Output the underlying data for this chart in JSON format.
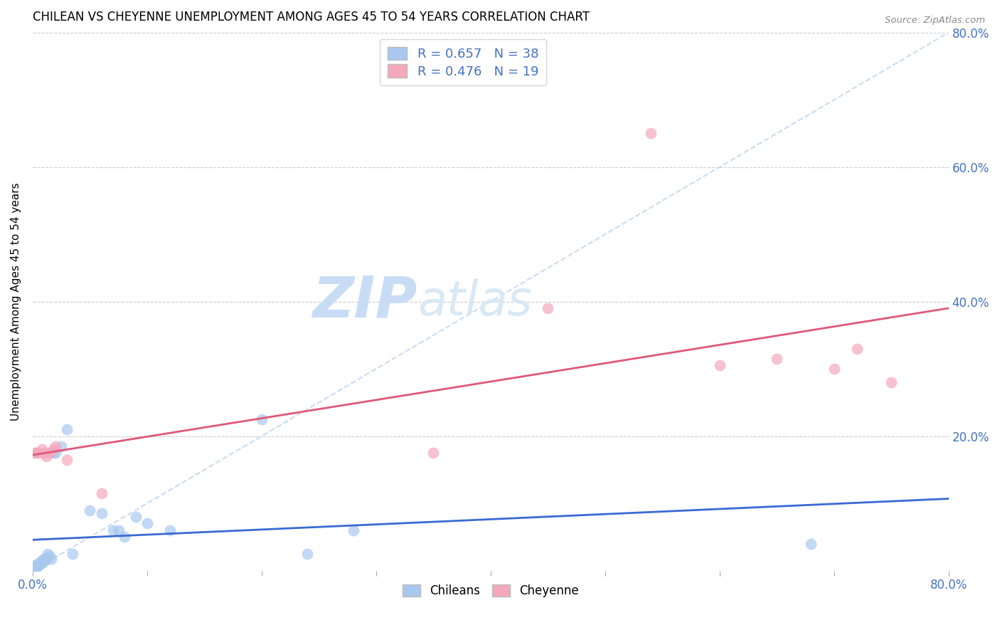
{
  "title": "CHILEAN VS CHEYENNE UNEMPLOYMENT AMONG AGES 45 TO 54 YEARS CORRELATION CHART",
  "source": "Source: ZipAtlas.com",
  "ylabel": "Unemployment Among Ages 45 to 54 years",
  "xlim": [
    0.0,
    0.8
  ],
  "ylim": [
    0.0,
    0.8
  ],
  "chileans_x": [
    0.001,
    0.001,
    0.002,
    0.002,
    0.002,
    0.003,
    0.003,
    0.004,
    0.004,
    0.005,
    0.005,
    0.006,
    0.007,
    0.008,
    0.009,
    0.01,
    0.011,
    0.012,
    0.013,
    0.015,
    0.016,
    0.018,
    0.02,
    0.025,
    0.03,
    0.035,
    0.05,
    0.06,
    0.07,
    0.075,
    0.08,
    0.09,
    0.1,
    0.12,
    0.2,
    0.24,
    0.28,
    0.68
  ],
  "chileans_y": [
    0.005,
    0.007,
    0.004,
    0.006,
    0.008,
    0.005,
    0.007,
    0.006,
    0.009,
    0.008,
    0.01,
    0.012,
    0.01,
    0.015,
    0.012,
    0.018,
    0.015,
    0.02,
    0.025,
    0.022,
    0.018,
    0.175,
    0.175,
    0.185,
    0.21,
    0.025,
    0.09,
    0.085,
    0.06,
    0.06,
    0.05,
    0.08,
    0.07,
    0.06,
    0.225,
    0.025,
    0.06,
    0.04
  ],
  "cheyenne_x": [
    0.002,
    0.003,
    0.005,
    0.008,
    0.01,
    0.012,
    0.015,
    0.018,
    0.02,
    0.03,
    0.06,
    0.35,
    0.45,
    0.54,
    0.6,
    0.65,
    0.7,
    0.72,
    0.75
  ],
  "cheyenne_y": [
    0.175,
    0.175,
    0.175,
    0.18,
    0.175,
    0.17,
    0.175,
    0.18,
    0.185,
    0.165,
    0.115,
    0.175,
    0.39,
    0.65,
    0.305,
    0.315,
    0.3,
    0.33,
    0.28
  ],
  "chileans_R": 0.657,
  "chileans_N": 38,
  "cheyenne_R": 0.476,
  "cheyenne_N": 19,
  "chilean_scatter_color": "#a8c8f0",
  "cheyenne_scatter_color": "#f4a8bc",
  "chilean_line_color": "#3a6ad4",
  "cheyenne_line_color": "#e05878",
  "diagonal_color": "#c8ddf0",
  "watermark_color": "#ddeaf8",
  "legend_label_chileans": "Chileans",
  "legend_label_cheyenne": "Cheyenne"
}
